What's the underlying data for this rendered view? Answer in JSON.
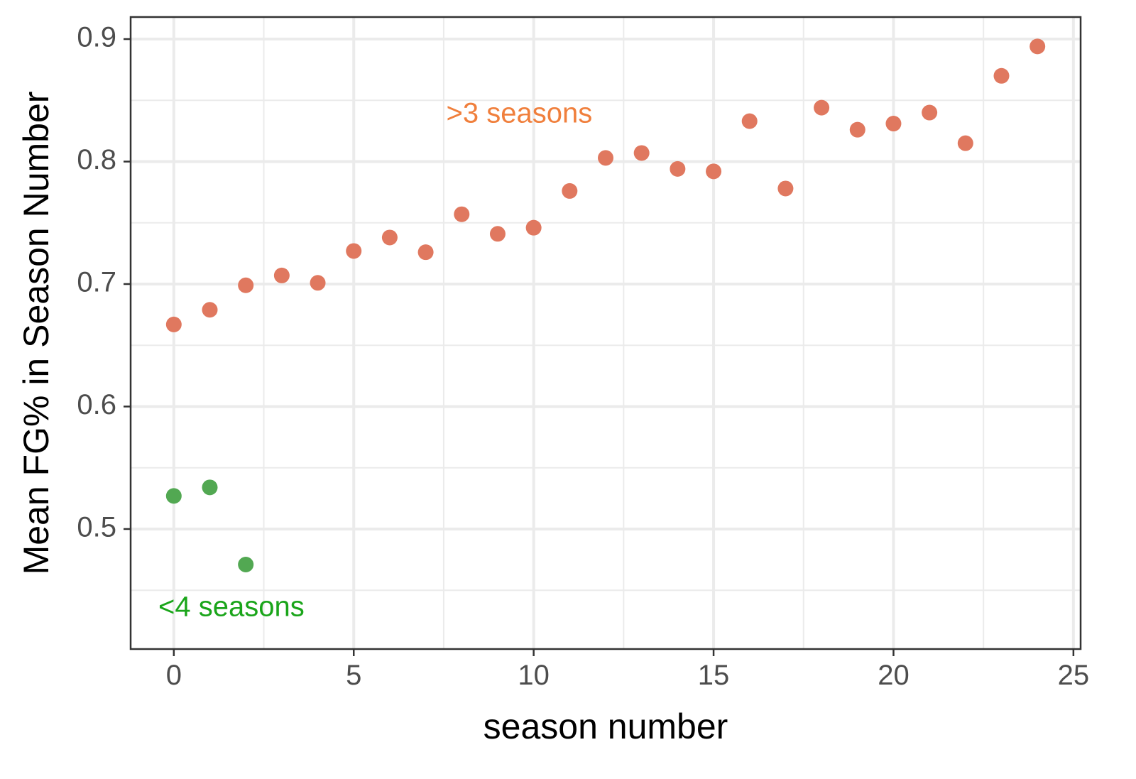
{
  "chart_data": {
    "type": "scatter",
    "title": "",
    "xlabel": "season number",
    "ylabel": "Mean FG% in Season Number",
    "xlim": [
      -1.2,
      25.2
    ],
    "ylim": [
      0.402,
      0.918
    ],
    "x_ticks": [
      0,
      5,
      10,
      15,
      20,
      25
    ],
    "x_tick_labels": [
      "0",
      "5",
      "10",
      "15",
      "20",
      "25"
    ],
    "y_ticks": [
      0.5,
      0.6,
      0.7,
      0.8,
      0.9
    ],
    "y_tick_labels": [
      "0.5",
      "0.6",
      "0.7",
      "0.8",
      "0.9"
    ],
    "grid": true,
    "legend": "none",
    "series": [
      {
        "color": "#e0785f",
        "x": [
          0,
          1,
          2,
          3,
          4,
          5,
          6,
          7,
          8,
          9,
          10,
          11,
          12,
          13,
          14,
          15,
          16,
          17,
          18,
          19,
          20,
          21,
          22,
          23,
          24
        ],
        "y": [
          0.667,
          0.679,
          0.699,
          0.707,
          0.701,
          0.727,
          0.738,
          0.726,
          0.757,
          0.741,
          0.746,
          0.776,
          0.803,
          0.807,
          0.794,
          0.792,
          0.833,
          0.778,
          0.844,
          0.826,
          0.831,
          0.84,
          0.815,
          0.87,
          0.894
        ]
      },
      {
        "color": "#52a852",
        "x": [
          0,
          1,
          2
        ],
        "y": [
          0.527,
          0.534,
          0.471
        ]
      }
    ],
    "annotations": [
      {
        "text": ">3 seasons",
        "x": 9.6,
        "y": 0.838,
        "color": "#f07f3c"
      },
      {
        "text": "<4 seasons",
        "x": 1.6,
        "y": 0.435,
        "color": "#1aa51a"
      }
    ]
  }
}
